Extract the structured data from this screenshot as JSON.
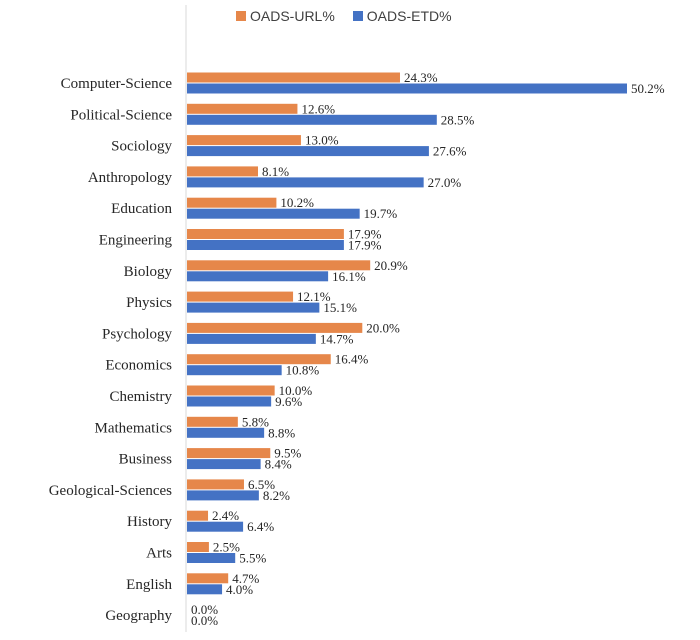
{
  "chart_data": {
    "type": "bar",
    "orientation": "horizontal",
    "categories": [
      "Computer-Science",
      "Political-Science",
      "Sociology",
      "Anthropology",
      "Education",
      "Engineering",
      "Biology",
      "Physics",
      "Psychology",
      "Economics",
      "Chemistry",
      "Mathematics",
      "Business",
      "Geological-Sciences",
      "History",
      "Arts",
      "English",
      "Geography"
    ],
    "series": [
      {
        "name": "OADS-URL%",
        "color": "#E6874A",
        "values": [
          24.3,
          12.6,
          13.0,
          8.1,
          10.2,
          17.9,
          20.9,
          12.1,
          20.0,
          16.4,
          10.0,
          5.8,
          9.5,
          6.5,
          2.4,
          2.5,
          4.7,
          0.0
        ],
        "labels": [
          "24.3%",
          "12.6%",
          "13.0%",
          "8.1%",
          "10.2%",
          "17.9%",
          "20.9%",
          "12.1%",
          "20.0%",
          "16.4%",
          "10.0%",
          "5.8%",
          "9.5%",
          "6.5%",
          "2.4%",
          "2.5%",
          "4.7%",
          "0.0%"
        ]
      },
      {
        "name": "OADS-ETD%",
        "color": "#4472C4",
        "values": [
          50.2,
          28.5,
          27.6,
          27.0,
          19.7,
          17.9,
          16.1,
          15.1,
          14.7,
          10.8,
          9.6,
          8.8,
          8.4,
          8.2,
          6.4,
          5.5,
          4.0,
          0.0
        ],
        "labels": [
          "50.2%",
          "28.5%",
          "27.6%",
          "27.0%",
          "19.7%",
          "17.9%",
          "16.1%",
          "15.1%",
          "14.7%",
          "10.8%",
          "9.6%",
          "8.8%",
          "8.4%",
          "8.2%",
          "6.4%",
          "5.5%",
          "4.0%",
          "0.0%"
        ]
      }
    ],
    "title": "",
    "xlabel": "",
    "ylabel": "",
    "xlim": [
      0,
      50.2
    ],
    "grid": false,
    "legend_position": "top"
  }
}
